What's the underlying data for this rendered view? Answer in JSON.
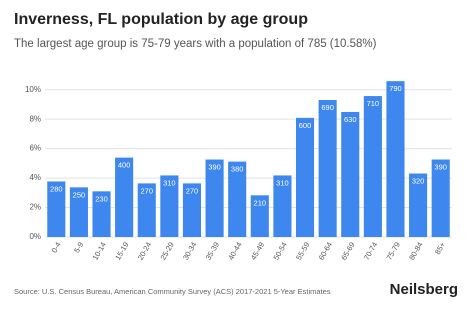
{
  "chart_data": {
    "type": "bar",
    "title": "Inverness, FL population by age group",
    "subtitle": "The largest age group is 75-79 years with a population of 785 (10.58%)",
    "categories": [
      "0-4",
      "5-9",
      "10-14",
      "15-19",
      "20-24",
      "25-29",
      "30-34",
      "35-39",
      "40-44",
      "45-49",
      "50-54",
      "55-59",
      "60-64",
      "65-69",
      "70-74",
      "75-79",
      "80-84",
      "85+"
    ],
    "values": [
      3.77,
      3.37,
      3.1,
      5.39,
      3.64,
      4.18,
      3.64,
      5.26,
      5.12,
      2.83,
      4.18,
      8.09,
      9.3,
      8.49,
      9.57,
      10.58,
      4.31,
      5.26
    ],
    "counts": [
      280,
      250,
      230,
      400,
      270,
      310,
      270,
      390,
      380,
      210,
      310,
      600,
      690,
      630,
      710,
      790,
      320,
      390
    ],
    "color": "#3d87ef",
    "ylim": [
      0,
      11
    ],
    "yticks": [
      {
        "value": 0,
        "label": "0%"
      },
      {
        "value": 2,
        "label": "2%"
      },
      {
        "value": 4,
        "label": "4%"
      },
      {
        "value": 6,
        "label": "6%"
      },
      {
        "value": 8,
        "label": "8%"
      },
      {
        "value": 10,
        "label": "10%"
      }
    ],
    "grid": true,
    "source": "Source: U.S. Census Bureau, American Community Survey (ACS) 2017-2021 5-Year Estimates",
    "brand": "Neilsberg"
  }
}
